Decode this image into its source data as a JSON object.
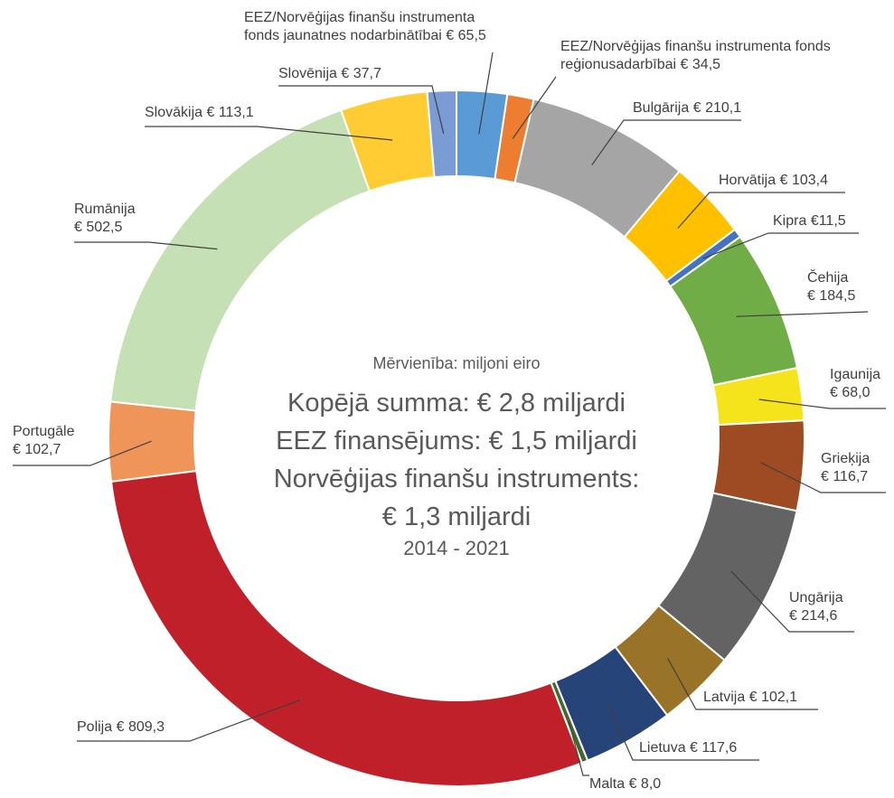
{
  "chart_data": {
    "type": "donut",
    "categories": [
      "EEZ/Norvēģijas finanšu instrumenta fonds jaunatnes nodarbinātībai",
      "EEZ/Norvēģijas finanšu instrumenta fonds reģionusadarbībai",
      "Bulgārija",
      "Horvātija",
      "Kipra",
      "Čehija",
      "Igaunija",
      "Grieķija",
      "Ungārija",
      "Latvija",
      "Lietuva",
      "Malta",
      "Polija",
      "Portugāle",
      "Rumānija",
      "Slovākija",
      "Slovēnija"
    ],
    "values": [
      65.5,
      34.5,
      210.1,
      103.4,
      11.5,
      184.5,
      68.0,
      116.7,
      214.6,
      102.1,
      117.6,
      8.0,
      809.3,
      102.7,
      502.5,
      113.1,
      37.7
    ],
    "value_labels": [
      "€ 65,5",
      "€ 34,5",
      "€ 210,1",
      "€ 103,4",
      "€11,5",
      "€ 184,5",
      "€ 68,0",
      "€ 116,7",
      "€ 214,6",
      "€ 102,1",
      "€ 117,6",
      "€ 8,0",
      "€ 809,3",
      "€ 102,7",
      "€ 502,5",
      "€ 113,1",
      "€ 37,7"
    ],
    "colors": [
      "#5b9bd5",
      "#ed7d31",
      "#a5a5a5",
      "#ffc000",
      "#4472c4",
      "#70ad47",
      "#f5e31b",
      "#9e4a22",
      "#636363",
      "#997328",
      "#264478",
      "#43682b",
      "#c0202a",
      "#f0955a",
      "#c5e0b4",
      "#ffcd33",
      "#7a9bd4"
    ],
    "subtitle": "Mērvienība: miljoni eiro",
    "center_text": [
      "Kopējā summa: € 2,8 miljardi",
      "EEZ finansējums: € 1,5 miljardi",
      "Norvēģijas finanšu instruments:",
      "€ 1,3 miljardi"
    ],
    "period": "2014 - 2021"
  }
}
